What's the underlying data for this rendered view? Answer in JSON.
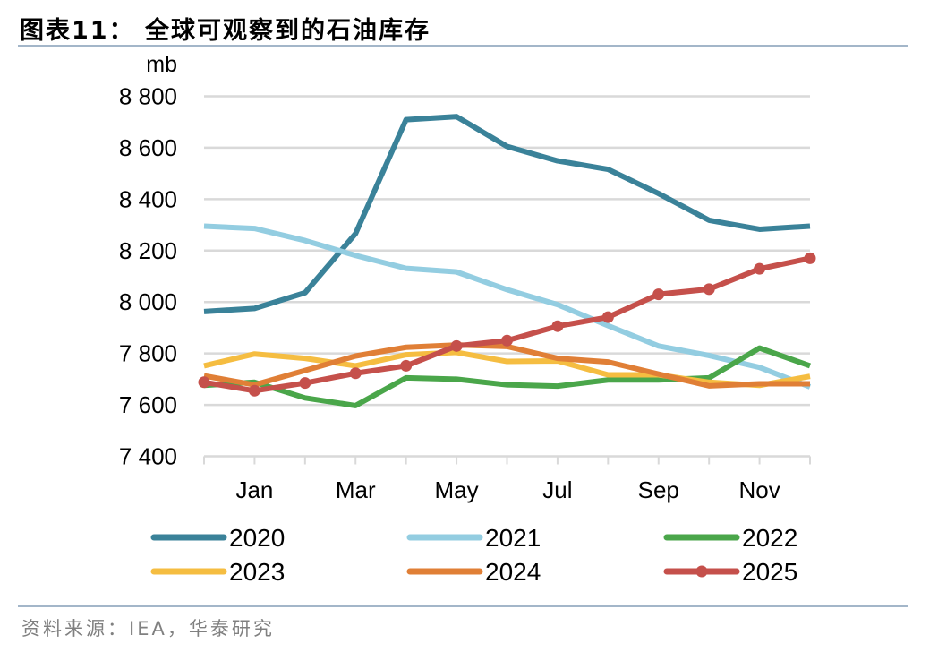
{
  "title": "图表11：  全球可观察到的石油库存",
  "source": "资料来源：IEA，华泰研究",
  "chart_data": {
    "type": "line",
    "title": "",
    "ylabel": "mb",
    "xlabel": "",
    "ylim": [
      7400,
      8800
    ],
    "yticks": [
      7400,
      7600,
      7800,
      8000,
      8200,
      8400,
      8600,
      8800
    ],
    "ytick_labels": [
      "7 400",
      "7 600",
      "7 800",
      "8 000",
      "8 200",
      "8 400",
      "8 600",
      "8 800"
    ],
    "categories": [
      "",
      "Jan",
      "",
      "Mar",
      "",
      "May",
      "",
      "Jul",
      "",
      "Sep",
      "",
      "Nov",
      ""
    ],
    "grid": "horizontal",
    "legend_position": "bottom",
    "series": [
      {
        "name": "2020",
        "color": "#3a8299",
        "markers": false,
        "values": [
          7963,
          7975,
          8036,
          8266,
          8709,
          8721,
          8605,
          8549,
          8516,
          8422,
          8318,
          8283,
          8295
        ]
      },
      {
        "name": "2021",
        "color": "#93cde1",
        "markers": false,
        "values": [
          8295,
          8286,
          8239,
          8181,
          8131,
          8117,
          8048,
          7990,
          7908,
          7829,
          7792,
          7746,
          7670
        ]
      },
      {
        "name": "2022",
        "color": "#4aa64a",
        "markers": false,
        "values": [
          7676,
          7688,
          7627,
          7597,
          7705,
          7700,
          7678,
          7673,
          7697,
          7697,
          7705,
          7821,
          7752
        ]
      },
      {
        "name": "2023",
        "color": "#f5bd41",
        "markers": false,
        "values": [
          7752,
          7798,
          7781,
          7752,
          7795,
          7804,
          7769,
          7771,
          7717,
          7717,
          7688,
          7676,
          7711
        ]
      },
      {
        "name": "2024",
        "color": "#e07f36",
        "markers": false,
        "values": [
          7713,
          7678,
          7734,
          7790,
          7824,
          7833,
          7827,
          7781,
          7767,
          7720,
          7674,
          7682,
          7682
        ]
      },
      {
        "name": "2025",
        "color": "#c5504b",
        "markers": true,
        "values": [
          7688,
          7655,
          7685,
          7723,
          7752,
          7829,
          7850,
          7906,
          7941,
          8030,
          8050,
          8129,
          8170
        ]
      }
    ]
  }
}
